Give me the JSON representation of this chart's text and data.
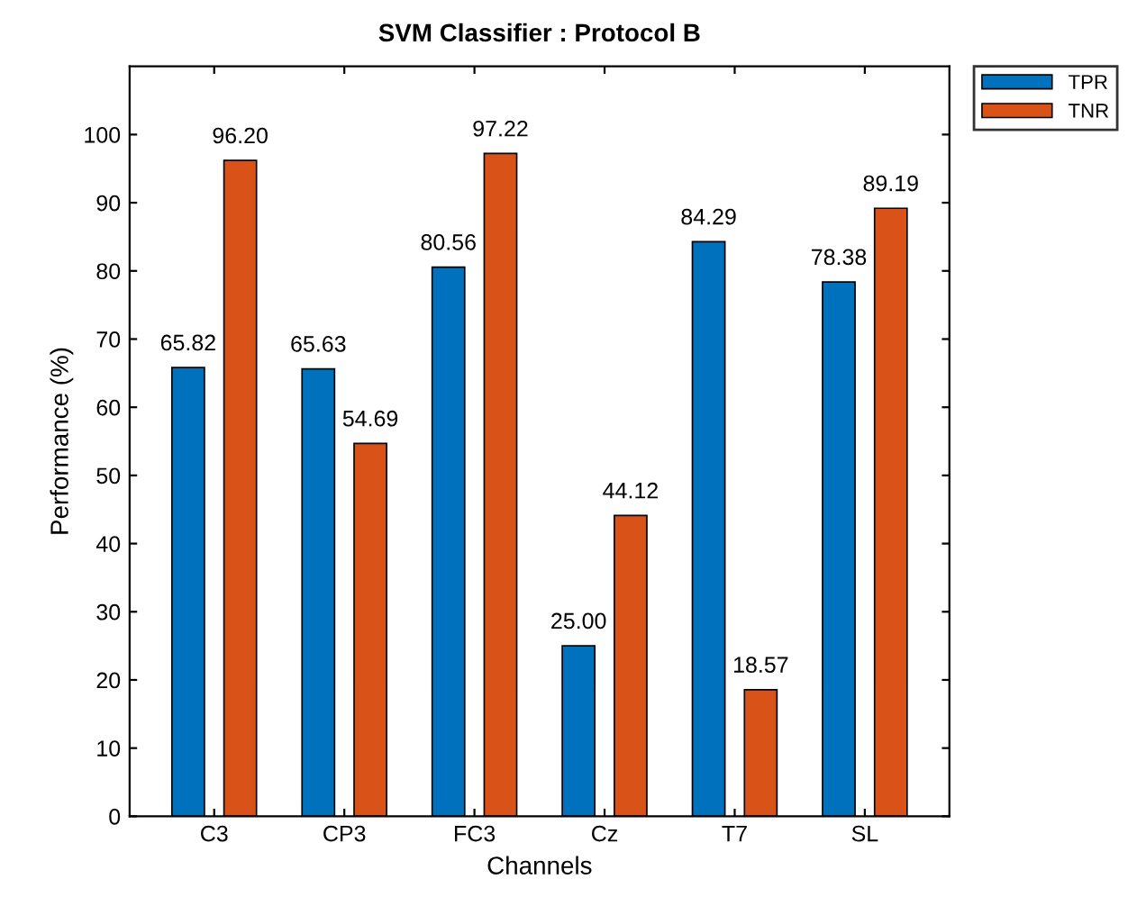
{
  "chart_data": {
    "type": "bar",
    "title": "SVM Classifier : Protocol B",
    "xlabel": "Channels",
    "ylabel": "Performance (%)",
    "categories": [
      "C3",
      "CP3",
      "FC3",
      "Cz",
      "T7",
      "SL"
    ],
    "series": [
      {
        "name": "TPR",
        "color": "#0072bd",
        "values": [
          65.82,
          65.63,
          80.56,
          25.0,
          84.29,
          78.38
        ],
        "value_labels": [
          "65.82",
          "65.63",
          "80.56",
          "25.00",
          "84.29",
          "78.38"
        ]
      },
      {
        "name": "TNR",
        "color": "#d95319",
        "values": [
          96.2,
          54.69,
          97.22,
          44.12,
          18.57,
          89.19
        ],
        "value_labels": [
          "96.20",
          "54.69",
          "97.22",
          "44.12",
          "18.57",
          "89.19"
        ]
      }
    ],
    "ylim": [
      0,
      110
    ],
    "yticks": [
      0,
      10,
      20,
      30,
      40,
      50,
      60,
      70,
      80,
      90,
      100
    ],
    "grid": false,
    "legend": "top right"
  }
}
